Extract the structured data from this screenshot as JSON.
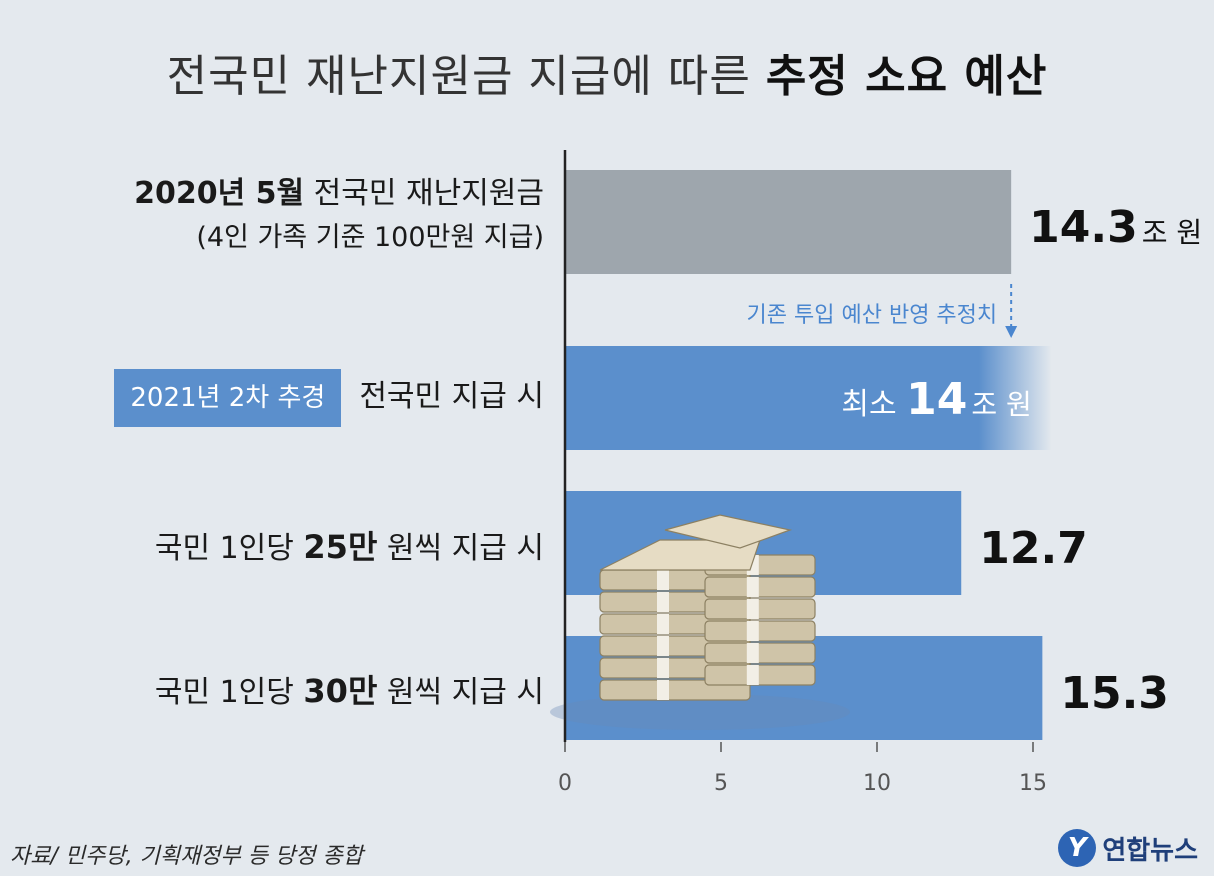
{
  "title": {
    "part1": "전국민 재난지원금 지급에 따른",
    "part2": "추정 소요 예산"
  },
  "rows": [
    {
      "label_bold": "2020년 5월",
      "label_text": " 전국민 재난지원금",
      "label_sub": "(4인 가족 기준 100만원 지급)",
      "value_label": "14.3",
      "unit": "조 원"
    },
    {
      "tag": "2021년 2차 추경",
      "label_text": "전국민 지급 시",
      "value_prefix": "최소 ",
      "value_label": "14",
      "unit": "조 원"
    },
    {
      "label_pre": "국민 1인당 ",
      "label_bold": "25만",
      "label_post": " 원씩 지급 시",
      "value_label": "12.7"
    },
    {
      "label_pre": "국민 1인당 ",
      "label_bold": "30만",
      "label_post": " 원씩 지급 시",
      "value_label": "15.3"
    }
  ],
  "annotation": "기존 투입 예산 반영 추정치",
  "chart_data": {
    "type": "bar",
    "orientation": "horizontal",
    "categories": [
      "2020년 5월 전국민 재난지원금 (4인 가족 기준 100만원 지급)",
      "2021년 2차 추경 전국민 지급 시",
      "국민 1인당 25만 원씩 지급 시",
      "국민 1인당 30만 원씩 지급 시"
    ],
    "values": [
      14.3,
      14,
      12.7,
      15.3
    ],
    "value_note": "2021년 2차 추경 전국민 지급 시: 최소 14조 원 (하한값)",
    "unit": "조 원",
    "xlim": [
      0,
      15.5
    ],
    "xticks": [
      0,
      5,
      10,
      15
    ],
    "colors": {
      "reference": "#9ea6ad",
      "estimate": "#5b8fcc"
    },
    "grid": false,
    "legend": "none"
  },
  "source": "자료/ 민주당, 기획재정부 등 당정 종합",
  "brand": {
    "logo_letter": "Y",
    "name": "연합뉴스"
  },
  "colors": {
    "background": "#e4e9ee",
    "accent_blue": "#5b8fcc",
    "gray_bar": "#9ea6ad",
    "annotation_blue": "#4a86cf"
  }
}
